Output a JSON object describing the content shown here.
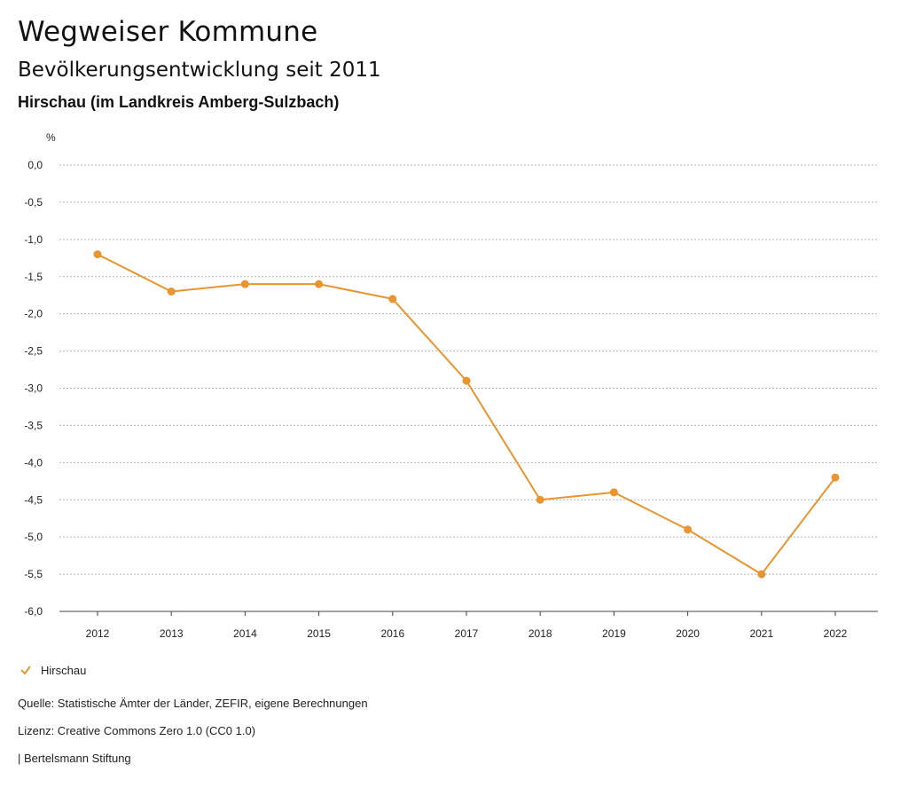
{
  "header": {
    "title": "Wegweiser Kommune",
    "subtitle": "Bevölkerungsentwicklung seit 2011",
    "location": "Hirschau (im Landkreis Amberg-Sulzbach)"
  },
  "chart_data": {
    "type": "line",
    "unit_label": "%",
    "x": [
      "2012",
      "2013",
      "2014",
      "2015",
      "2016",
      "2017",
      "2018",
      "2019",
      "2020",
      "2021",
      "2022"
    ],
    "series": [
      {
        "name": "Hirschau",
        "color": "#e8952f",
        "values": [
          -1.2,
          -1.7,
          -1.6,
          -1.6,
          -1.8,
          -2.9,
          -4.5,
          -4.4,
          -4.9,
          -5.5,
          -4.2
        ]
      }
    ],
    "ylim": [
      -6.0,
      0.0
    ],
    "yticks": [
      0.0,
      -0.5,
      -1.0,
      -1.5,
      -2.0,
      -2.5,
      -3.0,
      -3.5,
      -4.0,
      -4.5,
      -5.0,
      -5.5,
      -6.0
    ],
    "ytick_labels": [
      "0,0",
      "-0,5",
      "-1,0",
      "-1,5",
      "-2,0",
      "-2,5",
      "-3,0",
      "-3,5",
      "-4,0",
      "-4,5",
      "-5,0",
      "-5,5",
      "-6,0"
    ],
    "grid": true,
    "legend_position": "bottom-left"
  },
  "legend": {
    "icon": "check-icon",
    "label": "Hirschau"
  },
  "footer": {
    "source": "Quelle: Statistische Ämter der Länder, ZEFIR, eigene Berechnungen",
    "license": "Lizenz: Creative Commons Zero 1.0 (CC0 1.0)",
    "publisher": "| Bertelsmann Stiftung"
  }
}
